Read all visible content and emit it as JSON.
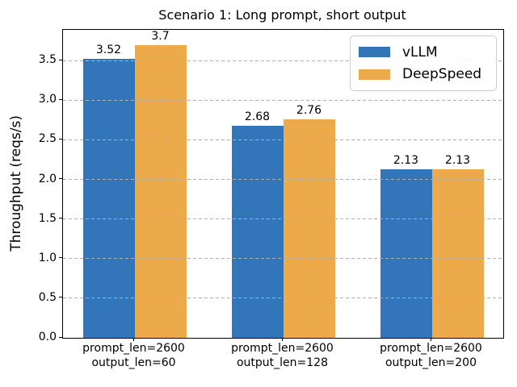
{
  "chart_data": {
    "type": "bar",
    "title": "Scenario 1: Long prompt, short output",
    "xlabel": "",
    "ylabel": "Throughput (reqs/s)",
    "categories": [
      [
        "prompt_len=2600",
        "output_len=60"
      ],
      [
        "prompt_len=2600",
        "output_len=128"
      ],
      [
        "prompt_len=2600",
        "output_len=200"
      ]
    ],
    "series": [
      {
        "name": "vLLM",
        "color": "#3375b9",
        "values": [
          3.52,
          2.68,
          2.13
        ],
        "labels": [
          "3.52",
          "2.68",
          "2.13"
        ]
      },
      {
        "name": "DeepSpeed",
        "color": "#edaa4a",
        "values": [
          3.7,
          2.76,
          2.13
        ],
        "labels": [
          "3.7",
          "2.76",
          "2.13"
        ]
      }
    ],
    "ylim": [
      0,
      3.89
    ],
    "yticks": [
      0.0,
      0.5,
      1.0,
      1.5,
      2.0,
      2.5,
      3.0,
      3.5
    ],
    "ytick_labels": [
      "0.0",
      "0.5",
      "1.0",
      "1.5",
      "2.0",
      "2.5",
      "3.0",
      "3.5"
    ],
    "grid": "horizontal-dashed",
    "grid_color": "#b0b0b0",
    "legend_position": "upper right"
  }
}
